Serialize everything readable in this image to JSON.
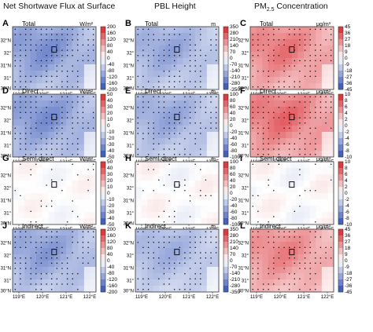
{
  "column_titles": [
    "Net Shortwave Flux at Surface",
    "PBL Height",
    "PM",
    "2.5",
    " Concentration"
  ],
  "row_titles": [
    "Total",
    "Direct",
    "Semi-direct",
    "Indirect"
  ],
  "units": [
    "W/m²",
    "m",
    "μg/m³"
  ],
  "map_axes": {
    "lon_ticks": [
      "119°E",
      "120°E",
      "121°E",
      "122°E"
    ],
    "lat_ticks": [
      "32°N",
      "31°N",
      "30°N"
    ],
    "lat_minor": [
      "32°",
      "31°"
    ]
  },
  "colors": {
    "negative": "#2e4fb5",
    "positive": "#d9242a",
    "neutral": "#ffffff",
    "land_line": "#666666"
  },
  "chart_data": [
    {
      "type": "heatmap",
      "panel": "A",
      "title": "Total",
      "variable": "Net Shortwave Flux at Surface",
      "unit": "W/m²",
      "colorbar_ticks": [
        200,
        160,
        120,
        80,
        40,
        0,
        -40,
        -80,
        -120,
        -160,
        -200
      ],
      "colorbar_range": [
        -200,
        200
      ],
      "dominant_sign": "negative",
      "intensity": 0.55,
      "significance_stippling": true
    },
    {
      "type": "heatmap",
      "panel": "B",
      "title": "Total",
      "variable": "PBL Height",
      "unit": "m",
      "colorbar_ticks": [
        350,
        280,
        210,
        140,
        70,
        0,
        -70,
        -140,
        -210,
        -280,
        -350
      ],
      "colorbar_range": [
        -350,
        350
      ],
      "dominant_sign": "negative",
      "intensity": 0.45,
      "significance_stippling": true
    },
    {
      "type": "heatmap",
      "panel": "C",
      "title": "Total",
      "variable": "PM2.5 Concentration",
      "unit": "μg/m³",
      "colorbar_ticks": [
        45,
        36,
        27,
        18,
        9,
        0,
        -9,
        -18,
        -27,
        -36,
        -45
      ],
      "colorbar_range": [
        -45,
        45
      ],
      "dominant_sign": "positive",
      "intensity": 0.55,
      "significance_stippling": true
    },
    {
      "type": "heatmap",
      "panel": "D",
      "title": "Direct",
      "variable": "Net Shortwave Flux at Surface",
      "unit": "W/m²",
      "colorbar_ticks": [
        50,
        40,
        30,
        20,
        10,
        0,
        -10,
        -20,
        -30,
        -40,
        -50
      ],
      "colorbar_range": [
        -50,
        50
      ],
      "dominant_sign": "negative",
      "intensity": 0.55,
      "significance_stippling": true
    },
    {
      "type": "heatmap",
      "panel": "E",
      "title": "Direct",
      "variable": "PBL Height",
      "unit": "m",
      "colorbar_ticks": [
        100,
        80,
        60,
        40,
        20,
        0,
        -20,
        -40,
        -60,
        -80,
        -100
      ],
      "colorbar_range": [
        -100,
        100
      ],
      "dominant_sign": "negative",
      "intensity": 0.45,
      "significance_stippling": true
    },
    {
      "type": "heatmap",
      "panel": "F",
      "title": "Direct",
      "variable": "PM2.5 Concentration",
      "unit": "μg/m³",
      "colorbar_ticks": [
        10,
        8,
        6,
        4,
        2,
        0,
        -2,
        -4,
        -6,
        -8,
        -10
      ],
      "colorbar_range": [
        -10,
        10
      ],
      "dominant_sign": "positive",
      "intensity": 0.6,
      "significance_stippling": true
    },
    {
      "type": "heatmap",
      "panel": "G",
      "title": "Semi-direct",
      "variable": "Net Shortwave Flux at Surface",
      "unit": "W/m²",
      "colorbar_ticks": [
        50,
        40,
        30,
        20,
        10,
        0,
        -10,
        -20,
        -30,
        -40,
        -50
      ],
      "colorbar_range": [
        -50,
        50
      ],
      "dominant_sign": "mixed",
      "intensity": 0.08,
      "significance_stippling": true
    },
    {
      "type": "heatmap",
      "panel": "H",
      "title": "Semi-direct",
      "variable": "PBL Height",
      "unit": "m",
      "colorbar_ticks": [
        100,
        80,
        60,
        40,
        20,
        0,
        -20,
        -40,
        -60,
        -80,
        -100
      ],
      "colorbar_range": [
        -100,
        100
      ],
      "dominant_sign": "mixed",
      "intensity": 0.1,
      "significance_stippling": true
    },
    {
      "type": "heatmap",
      "panel": "I",
      "title": "Semi-direct",
      "variable": "PM2.5 Concentration",
      "unit": "μg/m³",
      "colorbar_ticks": [
        10,
        8,
        6,
        4,
        2,
        0,
        -2,
        -4,
        -6,
        -8,
        -10
      ],
      "colorbar_range": [
        -10,
        10
      ],
      "dominant_sign": "mixed",
      "intensity": 0.1,
      "significance_stippling": true
    },
    {
      "type": "heatmap",
      "panel": "J",
      "title": "Indirect",
      "variable": "Net Shortwave Flux at Surface",
      "unit": "W/m²",
      "colorbar_ticks": [
        200,
        160,
        120,
        80,
        40,
        0,
        -40,
        -80,
        -120,
        -160,
        -200
      ],
      "colorbar_range": [
        -200,
        200
      ],
      "dominant_sign": "negative",
      "intensity": 0.5,
      "significance_stippling": true
    },
    {
      "type": "heatmap",
      "panel": "K",
      "title": "Indirect",
      "variable": "PBL Height",
      "unit": "m",
      "colorbar_ticks": [
        350,
        280,
        210,
        140,
        70,
        0,
        -70,
        -140,
        -210,
        -280,
        -350
      ],
      "colorbar_range": [
        -350,
        350
      ],
      "dominant_sign": "negative",
      "intensity": 0.4,
      "significance_stippling": true
    },
    {
      "type": "heatmap",
      "panel": "L",
      "title": "Indirect",
      "variable": "PM2.5 Concentration",
      "unit": "μg/m³",
      "colorbar_ticks": [
        45,
        36,
        27,
        18,
        9,
        0,
        -9,
        -18,
        -27,
        -36,
        -45
      ],
      "colorbar_range": [
        -45,
        45
      ],
      "dominant_sign": "positive",
      "intensity": 0.5,
      "significance_stippling": true
    }
  ]
}
